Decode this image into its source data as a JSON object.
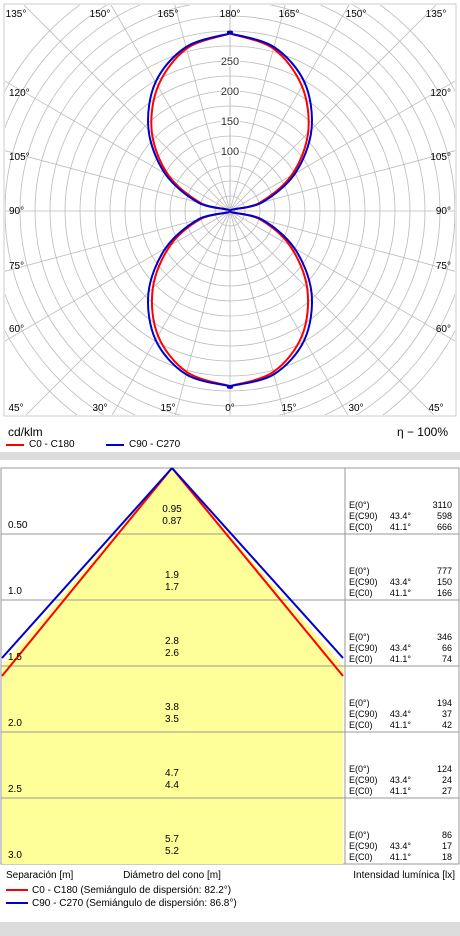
{
  "polar": {
    "angle_labels": {
      "top": [
        "135°",
        "150°",
        "165°",
        "180°",
        "165°",
        "150°",
        "135°"
      ],
      "bottom": [
        "45°",
        "30°",
        "15°",
        "0°",
        "15°",
        "30°",
        "45°"
      ],
      "left": [
        "120°",
        "105°",
        "90°",
        "75°",
        "60°"
      ],
      "right": [
        "120°",
        "105°",
        "90°",
        "75°",
        "60°"
      ]
    },
    "unit_label": "cd/klm",
    "efficiency_label": "η − 100%",
    "legend": [
      {
        "label": "C0 - C180",
        "color": "#ff0000"
      },
      {
        "label": "C90 - C270",
        "color": "#0000cc"
      }
    ]
  },
  "cone": {
    "rows": [
      {
        "height": "0.50",
        "diam_c90": "0.95",
        "diam_c0": "0.87",
        "e_label": "E(0°)",
        "e_c90_label": "E(C90)",
        "e_c0_label": "E(C0)",
        "angle_c90": "43.4°",
        "angle_c0": "41.1°",
        "e0": "3110",
        "e_c90": "598",
        "e_c0": "666"
      },
      {
        "height": "1.0",
        "diam_c90": "1.9",
        "diam_c0": "1.7",
        "e_label": "E(0°)",
        "e_c90_label": "E(C90)",
        "e_c0_label": "E(C0)",
        "angle_c90": "43.4°",
        "angle_c0": "41.1°",
        "e0": "777",
        "e_c90": "150",
        "e_c0": "166"
      },
      {
        "height": "1.5",
        "diam_c90": "2.8",
        "diam_c0": "2.6",
        "e_label": "E(0°)",
        "e_c90_label": "E(C90)",
        "e_c0_label": "E(C0)",
        "angle_c90": "43.4°",
        "angle_c0": "41.1°",
        "e0": "346",
        "e_c90": "66",
        "e_c0": "74"
      },
      {
        "height": "2.0",
        "diam_c90": "3.8",
        "diam_c0": "3.5",
        "e_label": "E(0°)",
        "e_c90_label": "E(C90)",
        "e_c0_label": "E(C0)",
        "angle_c90": "43.4°",
        "angle_c0": "41.1°",
        "e0": "194",
        "e_c90": "37",
        "e_c0": "42"
      },
      {
        "height": "2.5",
        "diam_c90": "4.7",
        "diam_c0": "4.4",
        "e_label": "E(0°)",
        "e_c90_label": "E(C90)",
        "e_c0_label": "E(C0)",
        "angle_c90": "43.4°",
        "angle_c0": "41.1°",
        "e0": "124",
        "e_c90": "24",
        "e_c0": "27"
      },
      {
        "height": "3.0",
        "diam_c90": "5.7",
        "diam_c0": "5.2",
        "e_label": "E(0°)",
        "e_c90_label": "E(C90)",
        "e_c0_label": "E(C0)",
        "angle_c90": "43.4°",
        "angle_c0": "41.1°",
        "e0": "86",
        "e_c90": "17",
        "e_c0": "18"
      }
    ],
    "footer": {
      "separation_label": "Separación [m]",
      "diameter_label": "Diámetro del cono [m]",
      "illuminance_label": "Intensidad lumínica [lx]"
    },
    "legend": [
      {
        "label": "C0 - C180 (Semiángulo de dispersión: 82.2°)",
        "color": "#ff0000"
      },
      {
        "label": "C90 - C270 (Semiángulo de dispersión: 86.8°)",
        "color": "#0000cc"
      }
    ]
  },
  "colors": {
    "grid": "#bbbbbb",
    "cone_fill": "#ffff99",
    "c0": "#ff0000",
    "c90": "#0000cc"
  },
  "chart_data": [
    {
      "type": "polar",
      "unit": "cd/klm",
      "radial_ticks": [
        100,
        150,
        200,
        250
      ],
      "rmax": 350,
      "angle_ticks_deg": [
        0,
        15,
        30,
        45,
        60,
        75,
        90,
        105,
        120,
        135,
        150,
        165,
        180
      ],
      "series": [
        {
          "name": "C0 - C180",
          "gamma": [
            0,
            15,
            30,
            45,
            60,
            75,
            90,
            105,
            120,
            135,
            150,
            165,
            180
          ],
          "values": [
            292,
            278,
            240,
            182,
            115,
            50,
            0,
            50,
            118,
            184,
            240,
            280,
            296
          ]
        },
        {
          "name": "C90 - C270",
          "gamma": [
            0,
            15,
            30,
            45,
            60,
            75,
            90,
            105,
            120,
            135,
            150,
            165,
            180
          ],
          "values": [
            292,
            282,
            248,
            192,
            124,
            55,
            0,
            55,
            125,
            192,
            248,
            283,
            296
          ]
        }
      ]
    },
    {
      "type": "table",
      "columns": [
        "Separación [m]",
        "Diámetro del cono [m] C90",
        "Diámetro del cono [m] C0",
        "E(0°) [lx]",
        "E(C90) [lx]",
        "E(C0) [lx]"
      ],
      "half_angles": {
        "C90": "43.4°",
        "C0": "41.1°"
      },
      "rows": [
        [
          0.5,
          0.95,
          0.87,
          3110,
          598,
          666
        ],
        [
          1.0,
          1.9,
          1.7,
          777,
          150,
          166
        ],
        [
          1.5,
          2.8,
          2.6,
          346,
          66,
          74
        ],
        [
          2.0,
          3.8,
          3.5,
          194,
          37,
          42
        ],
        [
          2.5,
          4.7,
          4.4,
          124,
          24,
          27
        ],
        [
          3.0,
          5.7,
          5.2,
          86,
          17,
          18
        ]
      ]
    }
  ]
}
